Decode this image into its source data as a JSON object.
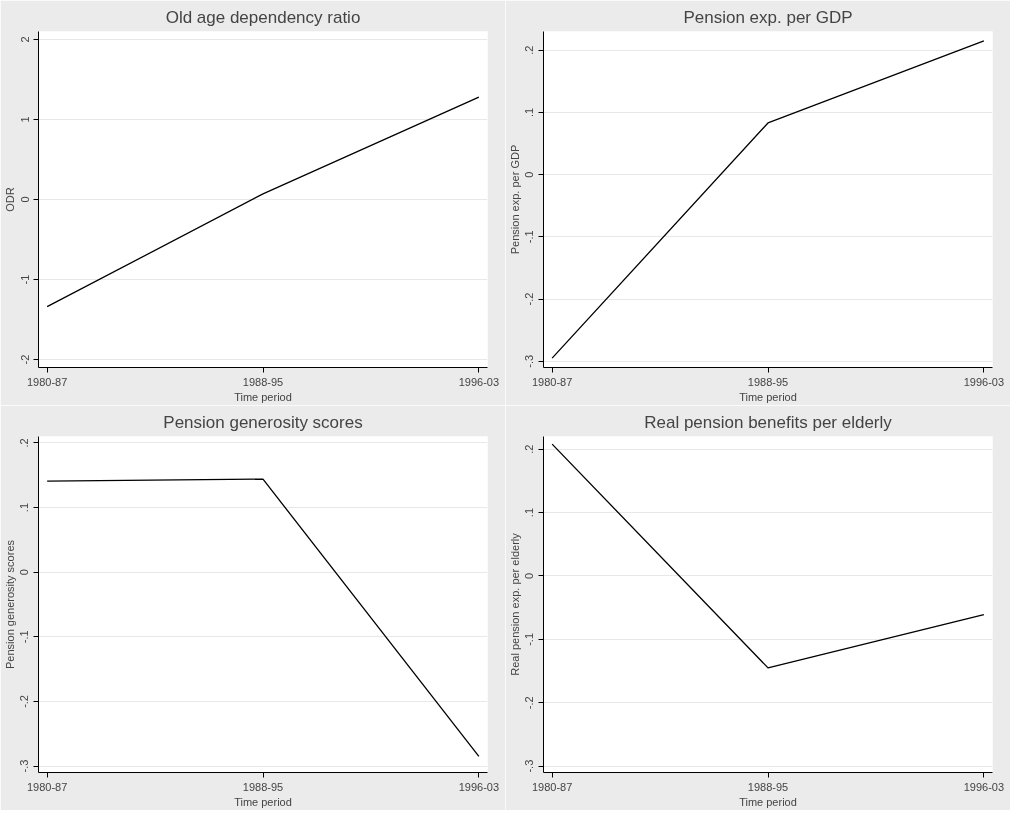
{
  "chart_data": [
    {
      "type": "line",
      "title": "Old age dependency ratio",
      "xlabel": "Time period",
      "ylabel": "ODR",
      "categories": [
        "1980-87",
        "1988-95",
        "1996-03"
      ],
      "series": [
        {
          "color": "#000000",
          "values": [
            -1.34,
            0.07,
            1.28
          ]
        }
      ],
      "ylim": [
        -2.1,
        2.1
      ],
      "yticks": [
        -2,
        -1,
        0,
        1,
        2
      ],
      "grid": "y",
      "line_style": "solid"
    },
    {
      "type": "line",
      "title": "Pension exp. per GDP",
      "xlabel": "Time period",
      "ylabel": "Pension exp. per GDP",
      "categories": [
        "1980-87",
        "1988-95",
        "1996-03"
      ],
      "series": [
        {
          "color": "#000000",
          "values": [
            -0.295,
            0.083,
            0.215
          ]
        }
      ],
      "ylim": [
        -0.31,
        0.23
      ],
      "yticks": [
        {
          "value": -0.3,
          "label": "-.3"
        },
        {
          "value": -0.2,
          "label": "-.2"
        },
        {
          "value": -0.1,
          "label": "-.1"
        },
        0,
        {
          "value": 0.1,
          "label": ".1"
        },
        {
          "value": 0.2,
          "label": ".2"
        }
      ],
      "grid": "y",
      "line_style": "solid"
    },
    {
      "type": "line",
      "title": "Pension generosity scores",
      "xlabel": "Time period",
      "ylabel": "Pension generosity scores",
      "categories": [
        "1980-87",
        "1988-95",
        "1996-03"
      ],
      "series": [
        {
          "color": "#000000",
          "values": [
            0.141,
            0.144,
            -0.285
          ]
        }
      ],
      "ylim": [
        -0.31,
        0.21
      ],
      "yticks": [
        {
          "value": -0.3,
          "label": "-.3"
        },
        {
          "value": -0.2,
          "label": "-.2"
        },
        {
          "value": -0.1,
          "label": "-.1"
        },
        0,
        {
          "value": 0.1,
          "label": ".1"
        },
        {
          "value": 0.2,
          "label": ".2"
        }
      ],
      "grid": "y",
      "line_style": "solid"
    },
    {
      "type": "line",
      "title": "Real pension benefits per elderly",
      "xlabel": "Time period",
      "ylabel": "Real pension exp. per elderly",
      "categories": [
        "1980-87",
        "1988-95",
        "1996-03"
      ],
      "series": [
        {
          "color": "#000000",
          "values": [
            0.208,
            -0.145,
            -0.061
          ]
        }
      ],
      "ylim": [
        -0.31,
        0.22
      ],
      "yticks": [
        {
          "value": -0.3,
          "label": "-.3"
        },
        {
          "value": -0.2,
          "label": "-.2"
        },
        {
          "value": -0.1,
          "label": "-.1"
        },
        0,
        {
          "value": 0.1,
          "label": ".1"
        },
        {
          "value": 0.2,
          "label": ".2"
        }
      ],
      "grid": "y",
      "line_style": "solid"
    }
  ]
}
